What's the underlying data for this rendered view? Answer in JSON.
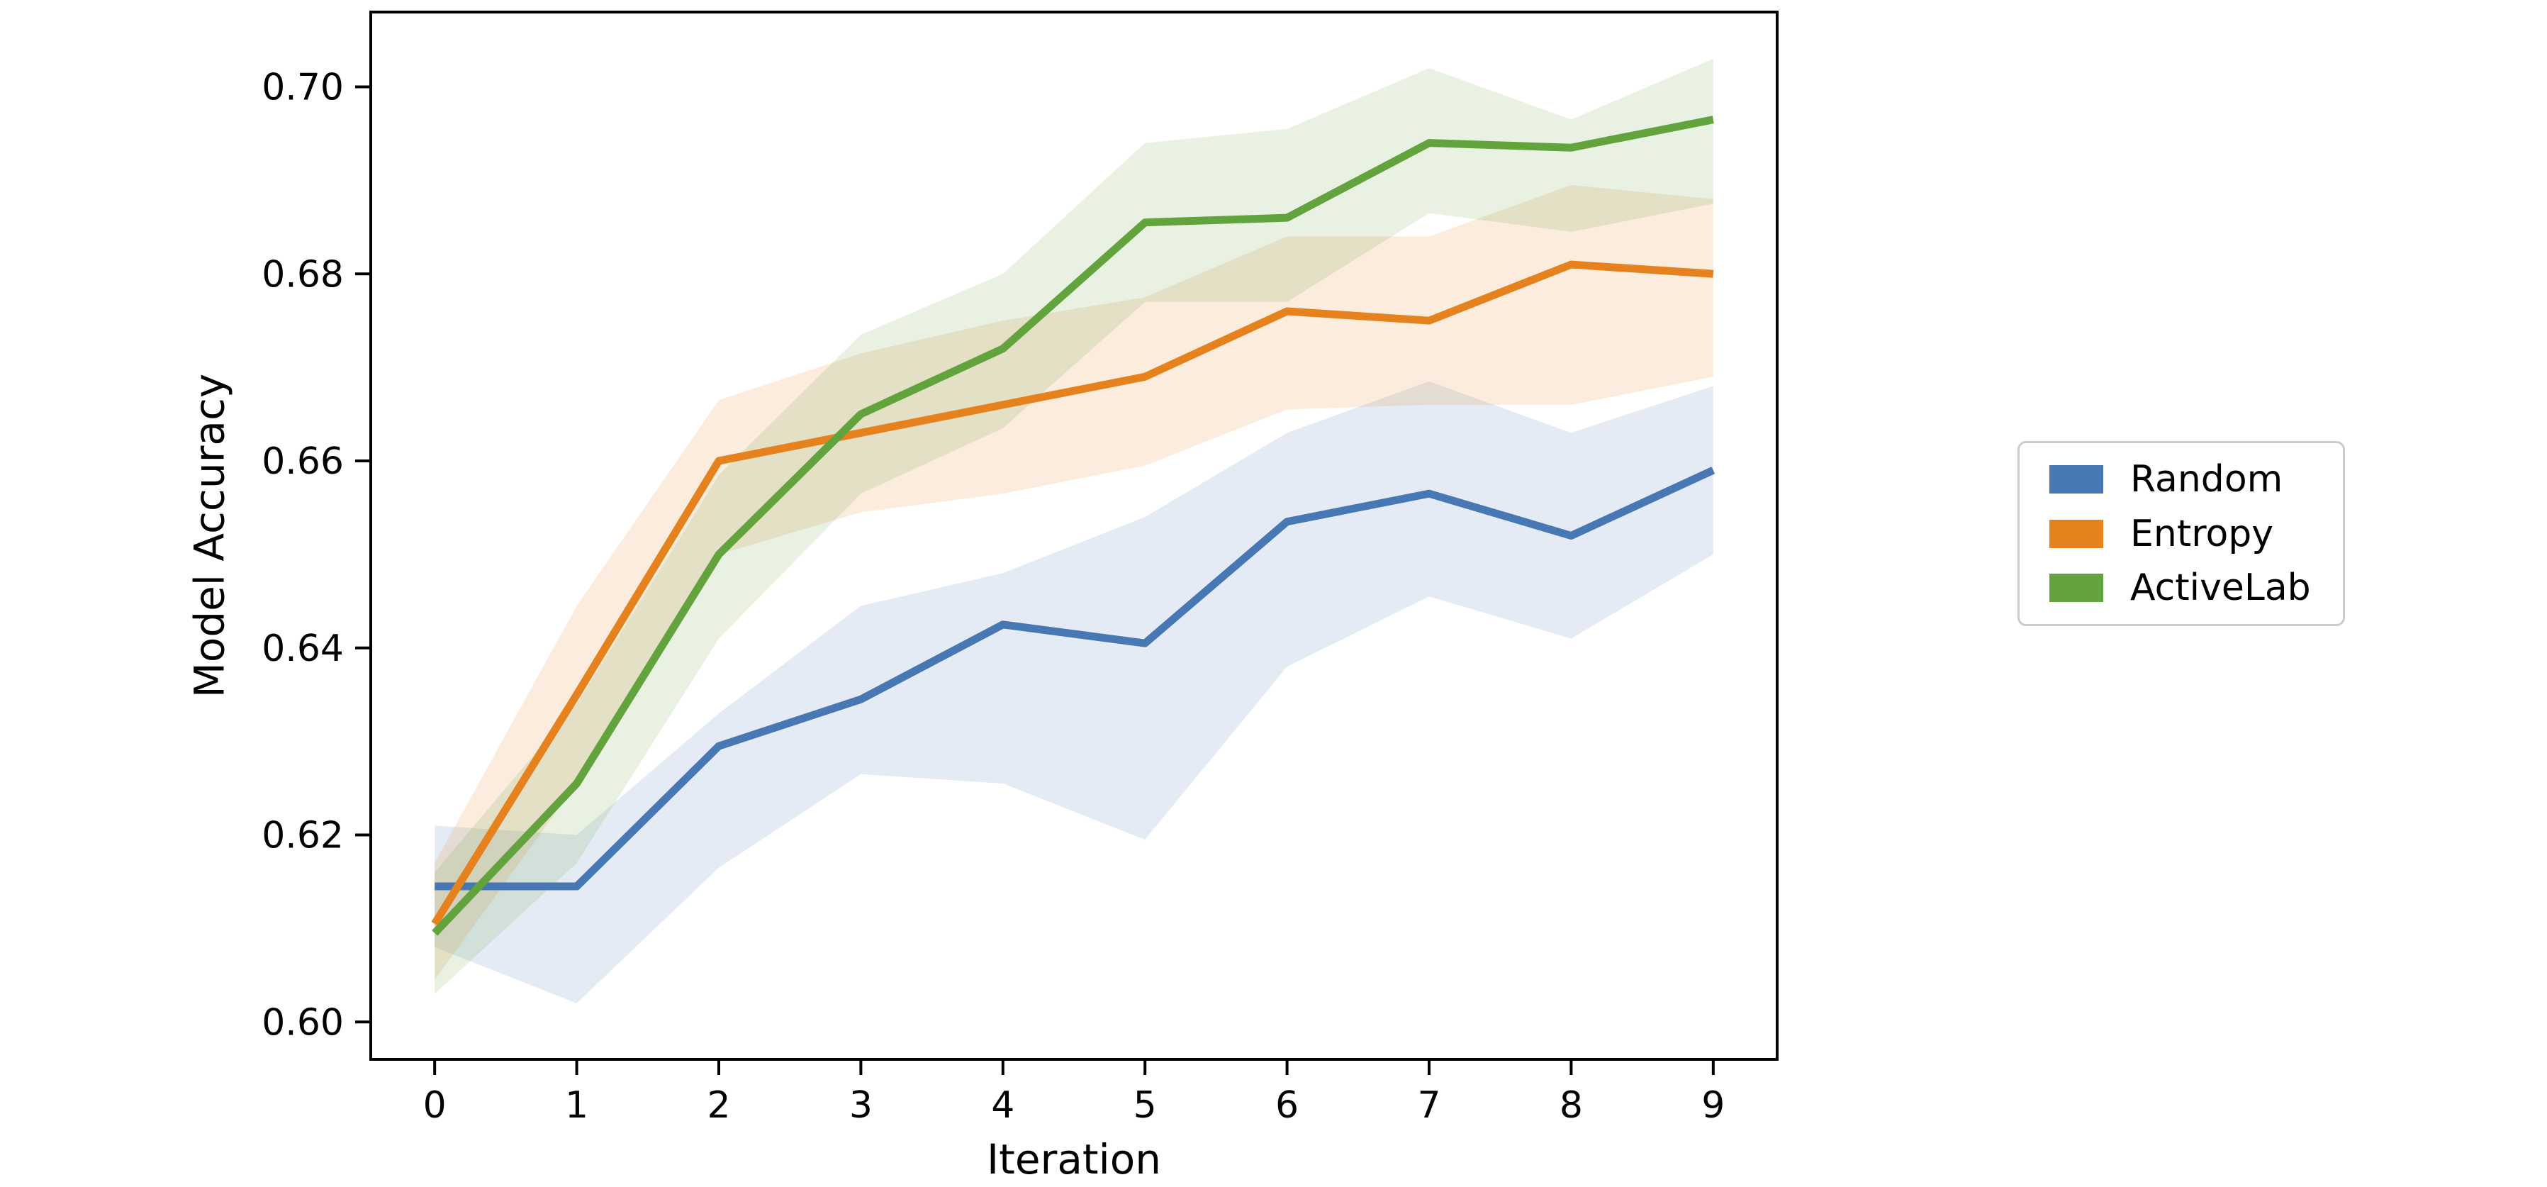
{
  "chart_data": {
    "type": "line",
    "title": "",
    "xlabel": "Iteration",
    "ylabel": "Model Accuracy",
    "grid": false,
    "legend_position": "outside-right",
    "x": [
      0,
      1,
      2,
      3,
      4,
      5,
      6,
      7,
      8,
      9
    ],
    "xlim": [
      -0.45,
      9.45
    ],
    "ylim": [
      0.596,
      0.708
    ],
    "x_ticks": [
      {
        "v": 0,
        "label": "0"
      },
      {
        "v": 1,
        "label": "1"
      },
      {
        "v": 2,
        "label": "2"
      },
      {
        "v": 3,
        "label": "3"
      },
      {
        "v": 4,
        "label": "4"
      },
      {
        "v": 5,
        "label": "5"
      },
      {
        "v": 6,
        "label": "6"
      },
      {
        "v": 7,
        "label": "7"
      },
      {
        "v": 8,
        "label": "8"
      },
      {
        "v": 9,
        "label": "9"
      }
    ],
    "y_ticks": [
      {
        "v": 0.6,
        "label": "0.60"
      },
      {
        "v": 0.62,
        "label": "0.62"
      },
      {
        "v": 0.64,
        "label": "0.64"
      },
      {
        "v": 0.66,
        "label": "0.66"
      },
      {
        "v": 0.68,
        "label": "0.68"
      },
      {
        "v": 0.7,
        "label": "0.70"
      }
    ],
    "series": [
      {
        "name": "Random",
        "color": "#4878b4",
        "band_opacity": 0.15,
        "values": [
          0.6145,
          0.6145,
          0.6295,
          0.6345,
          0.6425,
          0.6405,
          0.6535,
          0.6565,
          0.652,
          0.659
        ],
        "band_lower": [
          0.608,
          0.602,
          0.6165,
          0.6265,
          0.6255,
          0.6195,
          0.638,
          0.6455,
          0.641,
          0.65
        ],
        "band_upper": [
          0.621,
          0.62,
          0.633,
          0.6445,
          0.648,
          0.654,
          0.663,
          0.6685,
          0.663,
          0.668
        ]
      },
      {
        "name": "Entropy",
        "color": "#e5821e",
        "band_opacity": 0.15,
        "values": [
          0.6105,
          0.635,
          0.66,
          0.663,
          0.666,
          0.669,
          0.676,
          0.675,
          0.681,
          0.68
        ],
        "band_lower": [
          0.6045,
          0.6255,
          0.65,
          0.6545,
          0.6565,
          0.6595,
          0.6655,
          0.666,
          0.666,
          0.669
        ],
        "band_upper": [
          0.617,
          0.6445,
          0.6665,
          0.6715,
          0.675,
          0.6775,
          0.684,
          0.684,
          0.6895,
          0.688
        ]
      },
      {
        "name": "ActiveLab",
        "color": "#63a33d",
        "band_opacity": 0.15,
        "values": [
          0.6095,
          0.6255,
          0.65,
          0.665,
          0.672,
          0.6855,
          0.686,
          0.694,
          0.6935,
          0.6965
        ],
        "band_lower": [
          0.603,
          0.617,
          0.641,
          0.6565,
          0.6635,
          0.677,
          0.677,
          0.6865,
          0.6845,
          0.6875
        ],
        "band_upper": [
          0.616,
          0.634,
          0.6585,
          0.6735,
          0.68,
          0.694,
          0.6955,
          0.702,
          0.6965,
          0.703
        ]
      }
    ]
  }
}
